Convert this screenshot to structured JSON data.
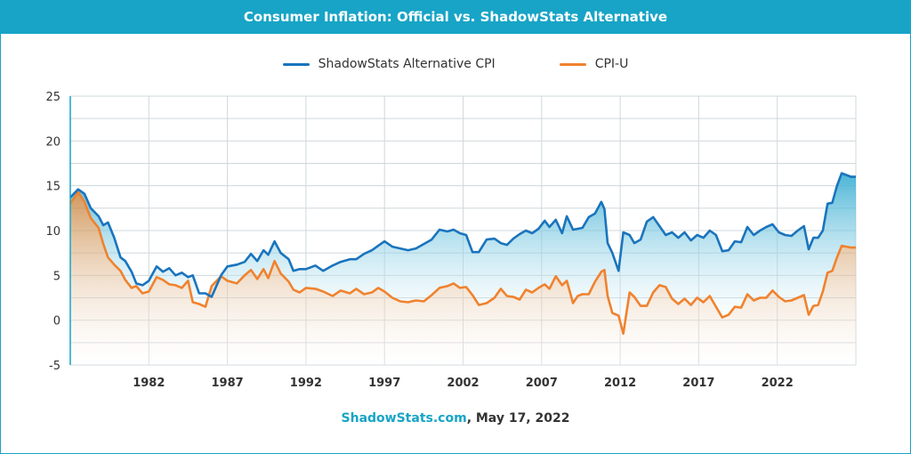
{
  "header": {
    "title": "Consumer Inflation: Official vs. ShadowStats Alternative"
  },
  "footer": {
    "site": "ShadowStats.com",
    "date": ", May 17, 2022"
  },
  "colors": {
    "title_bar": "#17a4c6",
    "shadowstats": "#1a74bd",
    "cpi": "#f0822e",
    "grid": "#cfd8dc"
  },
  "chart_data": {
    "type": "area",
    "title": "Consumer Inflation: Official vs. ShadowStats Alternative",
    "xlabel": "",
    "ylabel": "",
    "xlim": [
      1977,
      2027
    ],
    "ylim": [
      -5,
      25
    ],
    "x_ticks": [
      1982,
      1987,
      1992,
      1997,
      2002,
      2007,
      2012,
      2017,
      2022
    ],
    "y_ticks": [
      -5,
      0,
      5,
      10,
      15,
      20,
      25
    ],
    "grid": true,
    "legend": "top-center",
    "series": [
      {
        "name": "ShadowStats Alternative CPI",
        "color": "#1a74bd",
        "x": [
          1977.0,
          1977.5,
          1977.9,
          1978.3,
          1978.8,
          1979.1,
          1979.4,
          1979.8,
          1980.2,
          1980.5,
          1980.9,
          1981.2,
          1981.6,
          1982.0,
          1982.5,
          1982.9,
          1983.3,
          1983.7,
          1984.1,
          1984.5,
          1984.8,
          1985.2,
          1985.6,
          1986.0,
          1986.6,
          1987.0,
          1987.6,
          1988.1,
          1988.5,
          1988.9,
          1989.3,
          1989.6,
          1990.0,
          1990.4,
          1990.9,
          1991.2,
          1991.6,
          1992.0,
          1992.6,
          1993.1,
          1993.7,
          1994.2,
          1994.8,
          1995.2,
          1995.7,
          1996.2,
          1996.6,
          1997.0,
          1997.5,
          1998.0,
          1998.5,
          1999.0,
          1999.5,
          2000.0,
          2000.5,
          2001.0,
          2001.4,
          2001.8,
          2002.2,
          2002.6,
          2003.0,
          2003.5,
          2004.0,
          2004.4,
          2004.8,
          2005.2,
          2005.6,
          2006.0,
          2006.4,
          2006.8,
          2007.2,
          2007.5,
          2007.9,
          2008.3,
          2008.6,
          2009.0,
          2009.3,
          2009.6,
          2010.0,
          2010.4,
          2010.8,
          2011.0,
          2011.2,
          2011.5,
          2011.9,
          2012.2,
          2012.6,
          2012.9,
          2013.3,
          2013.7,
          2014.1,
          2014.5,
          2014.9,
          2015.3,
          2015.7,
          2016.1,
          2016.5,
          2016.9,
          2017.3,
          2017.7,
          2018.1,
          2018.5,
          2018.9,
          2019.3,
          2019.7,
          2020.1,
          2020.5,
          2020.9,
          2021.3,
          2021.7,
          2022.1,
          2022.5,
          2022.9,
          2023.3,
          2023.7,
          2024.0,
          2024.3,
          2024.6,
          2024.9,
          2025.2,
          2025.5,
          2025.8,
          2026.1,
          2026.4,
          2026.7,
          2027.0
        ],
        "values": [
          13.7,
          14.6,
          14.1,
          12.5,
          11.6,
          10.6,
          10.9,
          9.2,
          7.0,
          6.6,
          5.4,
          4.1,
          3.9,
          4.4,
          6.0,
          5.4,
          5.8,
          5.0,
          5.3,
          4.8,
          5.0,
          3.0,
          3.0,
          2.6,
          5.0,
          6.0,
          6.2,
          6.5,
          7.4,
          6.6,
          7.8,
          7.3,
          8.8,
          7.5,
          6.8,
          5.5,
          5.7,
          5.7,
          6.1,
          5.5,
          6.1,
          6.5,
          6.8,
          6.8,
          7.4,
          7.8,
          8.3,
          8.8,
          8.2,
          8.0,
          7.8,
          8.0,
          8.5,
          9.0,
          10.1,
          9.9,
          10.1,
          9.7,
          9.5,
          7.6,
          7.6,
          9.0,
          9.1,
          8.6,
          8.4,
          9.1,
          9.6,
          10.0,
          9.7,
          10.2,
          11.1,
          10.4,
          11.2,
          9.7,
          11.6,
          10.1,
          10.2,
          10.3,
          11.5,
          11.9,
          13.2,
          12.4,
          8.6,
          7.5,
          5.5,
          9.8,
          9.5,
          8.6,
          9.0,
          11.0,
          11.5,
          10.5,
          9.5,
          9.8,
          9.2,
          9.8,
          8.9,
          9.5,
          9.2,
          10.0,
          9.5,
          7.7,
          7.8,
          8.8,
          8.7,
          10.4,
          9.5,
          10.0,
          10.4,
          10.7,
          9.8,
          9.5,
          9.4,
          10.0,
          10.5,
          7.9,
          9.2,
          9.2,
          10.0,
          13.0,
          13.1,
          15.0,
          16.4,
          16.2,
          16.0,
          16.0
        ],
        "values_note": ""
      },
      {
        "name": "CPI-U",
        "color": "#f0822e",
        "x": [
          1977.0,
          1977.5,
          1977.9,
          1978.3,
          1978.8,
          1979.1,
          1979.4,
          1979.8,
          1980.2,
          1980.5,
          1980.9,
          1981.2,
          1981.6,
          1982.0,
          1982.5,
          1982.9,
          1983.3,
          1983.7,
          1984.1,
          1984.5,
          1984.8,
          1985.2,
          1985.6,
          1986.0,
          1986.6,
          1987.0,
          1987.6,
          1988.1,
          1988.5,
          1988.9,
          1989.3,
          1989.6,
          1990.0,
          1990.4,
          1990.9,
          1991.2,
          1991.6,
          1992.0,
          1992.6,
          1993.1,
          1993.7,
          1994.2,
          1994.8,
          1995.2,
          1995.7,
          1996.2,
          1996.6,
          1997.0,
          1997.5,
          1998.0,
          1998.5,
          1999.0,
          1999.5,
          2000.0,
          2000.5,
          2001.0,
          2001.4,
          2001.8,
          2002.2,
          2002.6,
          2003.0,
          2003.5,
          2004.0,
          2004.4,
          2004.8,
          2005.2,
          2005.6,
          2006.0,
          2006.4,
          2006.8,
          2007.2,
          2007.5,
          2007.9,
          2008.3,
          2008.6,
          2009.0,
          2009.3,
          2009.6,
          2010.0,
          2010.4,
          2010.8,
          2011.0,
          2011.2,
          2011.5,
          2011.9,
          2012.2,
          2012.6,
          2012.9,
          2013.3,
          2013.7,
          2014.1,
          2014.5,
          2014.9,
          2015.3,
          2015.7,
          2016.1,
          2016.5,
          2016.9,
          2017.3,
          2017.7,
          2018.1,
          2018.5,
          2018.9,
          2019.3,
          2019.7,
          2020.1,
          2020.5,
          2020.9,
          2021.3,
          2021.7,
          2022.1,
          2022.5,
          2022.9,
          2023.3,
          2023.7,
          2024.0,
          2024.3,
          2024.6,
          2024.9,
          2025.2,
          2025.5,
          2025.8,
          2026.1,
          2026.4,
          2026.7,
          2027.0
        ],
        "values": [
          13.0,
          14.3,
          13.2,
          11.4,
          10.3,
          8.5,
          7.0,
          6.2,
          5.5,
          4.5,
          3.6,
          3.8,
          3.0,
          3.2,
          4.8,
          4.5,
          4.0,
          3.9,
          3.6,
          4.4,
          2.0,
          1.8,
          1.5,
          3.8,
          4.9,
          4.4,
          4.1,
          5.0,
          5.6,
          4.6,
          5.7,
          4.7,
          6.6,
          5.2,
          4.3,
          3.4,
          3.1,
          3.6,
          3.5,
          3.2,
          2.7,
          3.3,
          3.0,
          3.5,
          2.9,
          3.1,
          3.6,
          3.2,
          2.5,
          2.1,
          2.0,
          2.2,
          2.1,
          2.8,
          3.6,
          3.8,
          4.1,
          3.6,
          3.7,
          2.8,
          1.7,
          1.9,
          2.5,
          3.5,
          2.7,
          2.6,
          2.3,
          3.4,
          3.1,
          3.6,
          4.0,
          3.5,
          4.9,
          3.9,
          4.4,
          1.9,
          2.7,
          2.9,
          2.9,
          4.3,
          5.4,
          5.6,
          2.7,
          0.8,
          0.5,
          -1.5,
          3.1,
          2.6,
          1.6,
          1.6,
          3.1,
          3.9,
          3.7,
          2.4,
          1.8,
          2.4,
          1.7,
          2.5,
          2.0,
          2.7,
          1.5,
          0.3,
          0.6,
          1.5,
          1.4,
          2.9,
          2.2,
          2.5,
          2.5,
          3.3,
          2.6,
          2.1,
          2.2,
          2.5,
          2.8,
          0.6,
          1.6,
          1.7,
          3.2,
          5.3,
          5.5,
          7.0,
          8.3,
          8.2,
          8.1,
          8.1
        ]
      }
    ]
  }
}
